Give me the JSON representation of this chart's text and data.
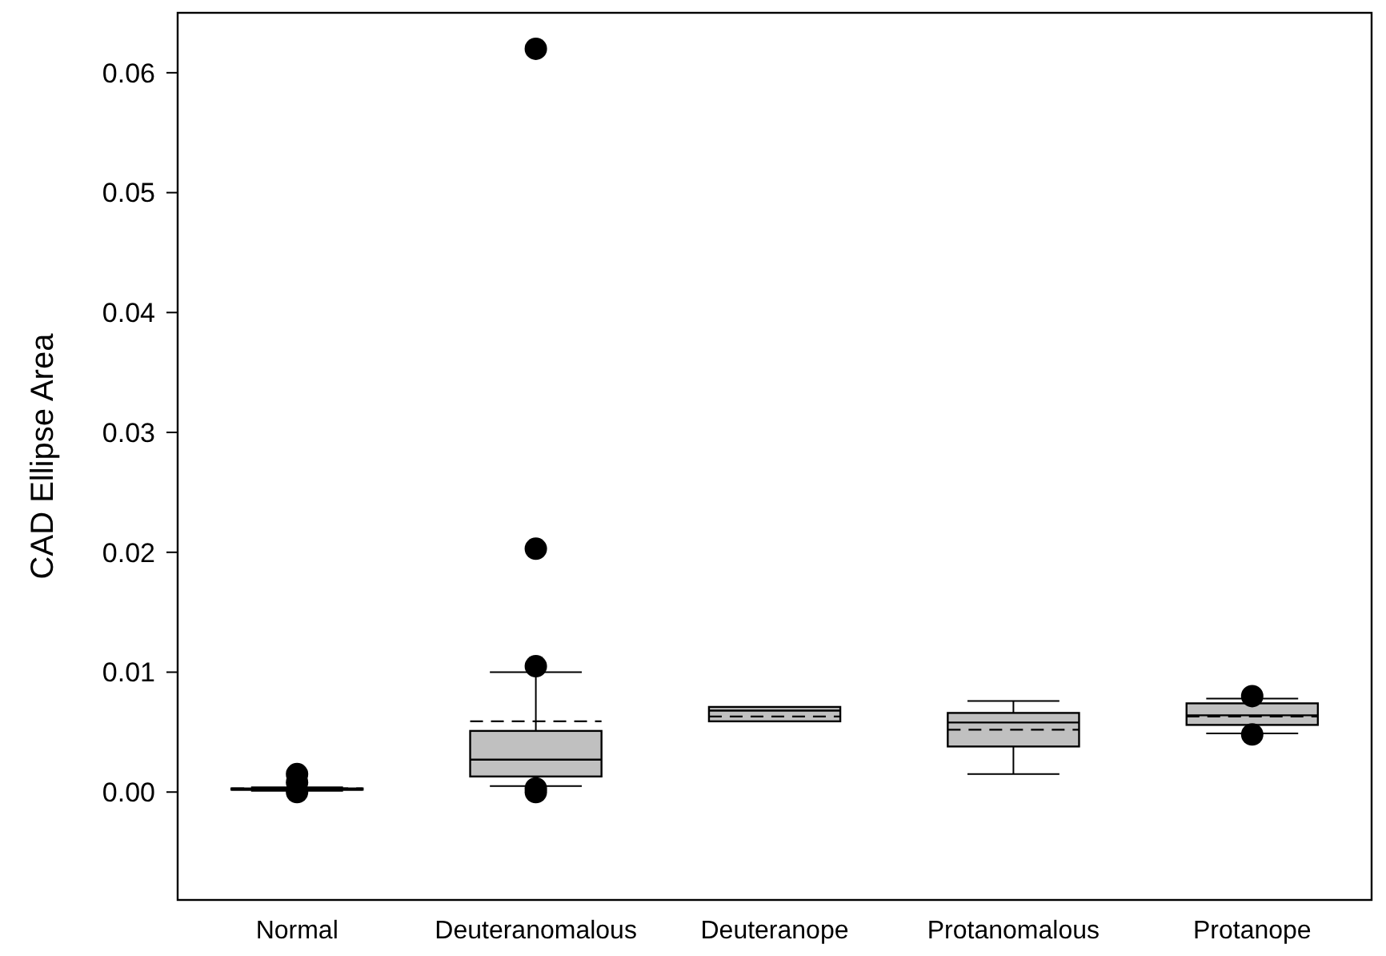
{
  "chart_data": {
    "type": "box",
    "ylabel": "CAD Ellipse Area",
    "categories": [
      "Normal",
      "Deuteranomalous",
      "Deuteranope",
      "Protanomalous",
      "Protanope"
    ],
    "color": "#c0c0c0",
    "ylim": [
      -0.009,
      0.065
    ],
    "yticks": [
      {
        "value": 0,
        "label": "0.00"
      },
      {
        "value": 0.01,
        "label": "0.01"
      },
      {
        "value": 0.02,
        "label": "0.02"
      },
      {
        "value": 0.03,
        "label": "0.03"
      },
      {
        "value": 0.04,
        "label": "0.04"
      },
      {
        "value": 0.05,
        "label": "0.05"
      },
      {
        "value": 0.06,
        "label": "0.06"
      }
    ],
    "boxes": [
      {
        "low": 0.0001,
        "q1": 0.0002,
        "median": 0.0002,
        "q3": 0.0003,
        "high": 0.0004,
        "mean": 0.0003,
        "outliers": [
          0.0015,
          0.0008,
          0.0
        ]
      },
      {
        "low": 0.0005,
        "q1": 0.0013,
        "median": 0.0027,
        "q3": 0.0051,
        "high": 0.01,
        "mean": 0.0059,
        "outliers": [
          0.062,
          0.0203,
          0.0105,
          0.0003,
          0.0
        ]
      },
      {
        "low": 0.0059,
        "q1": 0.0059,
        "median": 0.0068,
        "q3": 0.0071,
        "high": 0.0071,
        "mean": 0.0063
      },
      {
        "low": 0.0015,
        "q1": 0.0038,
        "median": 0.0058,
        "q3": 0.0066,
        "high": 0.0076,
        "mean": 0.0052
      },
      {
        "low": 0.0049,
        "q1": 0.0056,
        "median": 0.0064,
        "q3": 0.0074,
        "high": 0.0078,
        "mean": 0.0063,
        "outliers": [
          0.008,
          0.0048
        ]
      }
    ]
  }
}
